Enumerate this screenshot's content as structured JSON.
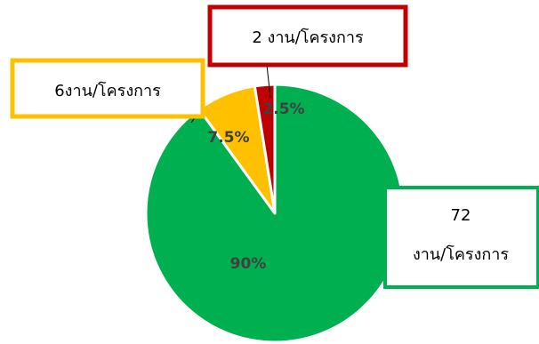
{
  "chart_data": {
    "type": "pie",
    "slices": [
      {
        "label_lines": [
          "72",
          "งาน/โครงการ"
        ],
        "value": 72,
        "percent_label": "90%",
        "color": "#00B050"
      },
      {
        "label_lines": [
          "6งาน/โครงการ"
        ],
        "value": 6,
        "percent_label": "7.5%",
        "color": "#FFC000"
      },
      {
        "label_lines": [
          "2 งาน/โครงการ"
        ],
        "value": 2,
        "percent_label": "2.5%",
        "color": "#C00000"
      }
    ],
    "title": "",
    "legend": "none"
  }
}
